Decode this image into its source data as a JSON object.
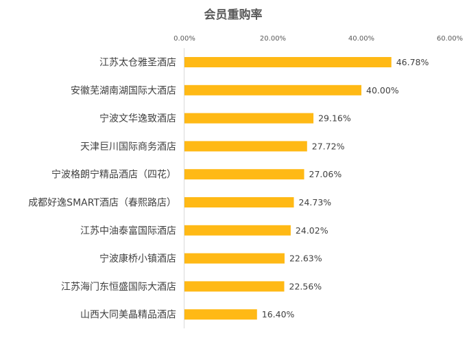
{
  "chart_data": {
    "type": "bar",
    "orientation": "horizontal",
    "title": "会员重购率",
    "xlabel": "",
    "ylabel": "",
    "xlim": [
      0,
      60
    ],
    "x_ticks": [
      "0.00%",
      "20.00%",
      "40.00%",
      "60.00%"
    ],
    "grid": false,
    "legend": "none",
    "bar_color": "#FFB915",
    "categories": [
      "江苏太仓雅圣酒店",
      "安徽芜湖南湖国际大酒店",
      "宁波文华逸致酒店",
      "天津巨川国际商务酒店",
      "宁波格朗宁精品酒店（四花）",
      "成都好逸SMART酒店（春熙路店）",
      "江苏中油泰富国际酒店",
      "宁波康桥小镇酒店",
      "江苏海门东恒盛国际大酒店",
      "山西大同美晶精品酒店"
    ],
    "values": [
      46.78,
      40.0,
      29.16,
      27.72,
      27.06,
      24.73,
      24.02,
      22.63,
      22.56,
      16.4
    ],
    "value_labels": [
      "46.78%",
      "40.00%",
      "29.16%",
      "27.72%",
      "27.06%",
      "24.73%",
      "24.02%",
      "22.63%",
      "22.56%",
      "16.40%"
    ]
  }
}
